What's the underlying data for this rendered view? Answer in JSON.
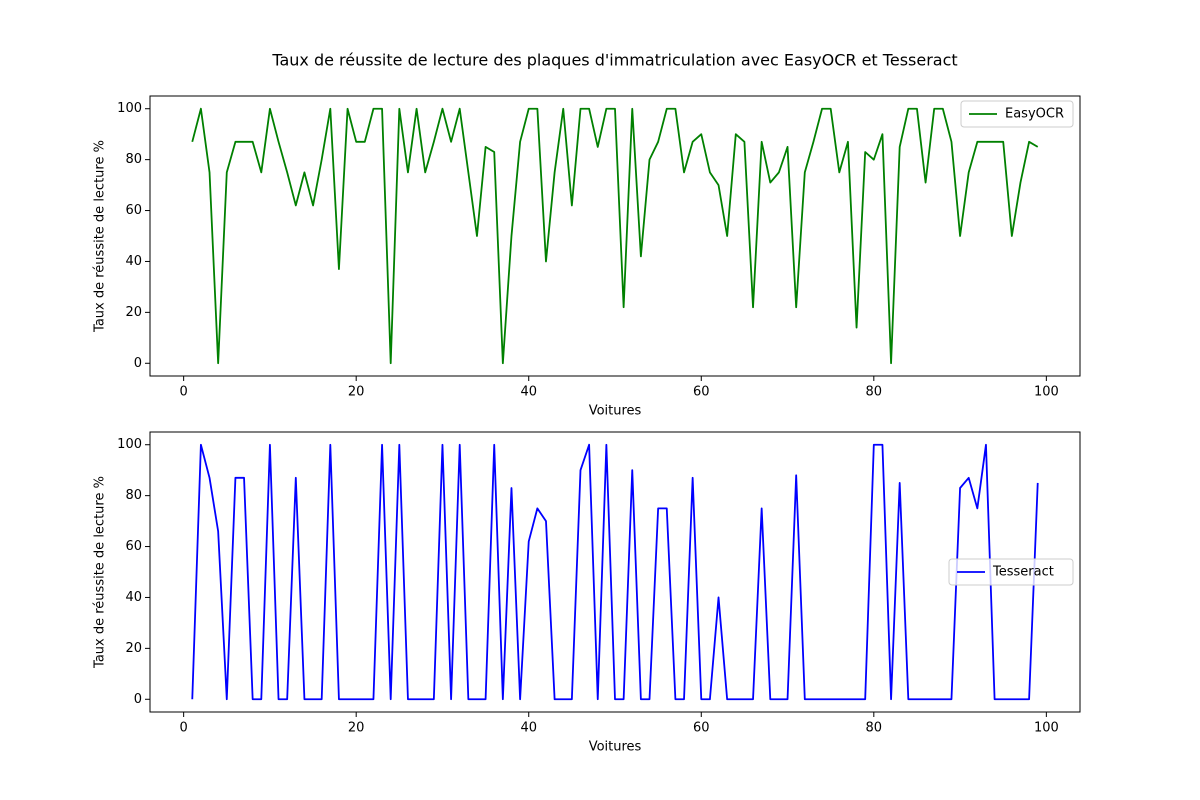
{
  "title": "Taux de réussite de lecture des plaques d'immatriculation avec EasyOCR et Tesseract",
  "chart_data": [
    {
      "type": "line",
      "xlabel": "Voitures",
      "ylabel": "Taux de réussite de lecture %",
      "x": [
        1,
        2,
        3,
        4,
        5,
        6,
        7,
        8,
        9,
        10,
        11,
        12,
        13,
        14,
        15,
        16,
        17,
        18,
        19,
        20,
        21,
        22,
        23,
        24,
        25,
        26,
        27,
        28,
        29,
        30,
        31,
        32,
        33,
        34,
        35,
        36,
        37,
        38,
        39,
        40,
        41,
        42,
        43,
        44,
        45,
        46,
        47,
        48,
        49,
        50,
        51,
        52,
        53,
        54,
        55,
        56,
        57,
        58,
        59,
        60,
        61,
        62,
        63,
        64,
        65,
        66,
        67,
        68,
        69,
        70,
        71,
        72,
        73,
        74,
        75,
        76,
        77,
        78,
        79,
        80,
        81,
        82,
        83,
        84,
        85,
        86,
        87,
        88,
        89,
        90,
        91,
        92,
        93,
        94,
        95,
        96,
        97,
        98,
        99
      ],
      "series": [
        {
          "name": "EasyOCR",
          "color": "green",
          "values": [
            87,
            100,
            75,
            0,
            75,
            87,
            87,
            87,
            75,
            100,
            87,
            75,
            62,
            75,
            62,
            80,
            100,
            37,
            100,
            87,
            87,
            100,
            100,
            0,
            100,
            75,
            100,
            75,
            87,
            100,
            87,
            100,
            75,
            50,
            85,
            83,
            0,
            50,
            87,
            100,
            100,
            40,
            75,
            100,
            62,
            100,
            100,
            85,
            100,
            100,
            22,
            100,
            42,
            80,
            87,
            100,
            100,
            75,
            87,
            90,
            75,
            70,
            50,
            90,
            87,
            22,
            87,
            71,
            75,
            85,
            22,
            75,
            87,
            100,
            100,
            75,
            87,
            14,
            83,
            80,
            90,
            0,
            85,
            100,
            100,
            71,
            100,
            100,
            87,
            50,
            75,
            87,
            87,
            87,
            87,
            50,
            71,
            87,
            85
          ]
        }
      ],
      "xlim": [
        -3.9,
        103.9
      ],
      "ylim": [
        -5,
        105
      ],
      "xticks": [
        0,
        20,
        40,
        60,
        80,
        100
      ],
      "yticks": [
        0,
        20,
        40,
        60,
        80,
        100
      ],
      "legend": "upper right"
    },
    {
      "type": "line",
      "xlabel": "Voitures",
      "ylabel": "Taux de réussite de lecture %",
      "x": [
        1,
        2,
        3,
        4,
        5,
        6,
        7,
        8,
        9,
        10,
        11,
        12,
        13,
        14,
        15,
        16,
        17,
        18,
        19,
        20,
        21,
        22,
        23,
        24,
        25,
        26,
        27,
        28,
        29,
        30,
        31,
        32,
        33,
        34,
        35,
        36,
        37,
        38,
        39,
        40,
        41,
        42,
        43,
        44,
        45,
        46,
        47,
        48,
        49,
        50,
        51,
        52,
        53,
        54,
        55,
        56,
        57,
        58,
        59,
        60,
        61,
        62,
        63,
        64,
        65,
        66,
        67,
        68,
        69,
        70,
        71,
        72,
        73,
        74,
        75,
        76,
        77,
        78,
        79,
        80,
        81,
        82,
        83,
        84,
        85,
        86,
        87,
        88,
        89,
        90,
        91,
        92,
        93,
        94,
        95,
        96,
        97,
        98,
        99
      ],
      "series": [
        {
          "name": "Tesseract",
          "color": "blue",
          "values": [
            0,
            100,
            87,
            66,
            0,
            87,
            87,
            0,
            0,
            100,
            0,
            0,
            87,
            0,
            0,
            0,
            100,
            0,
            0,
            0,
            0,
            0,
            100,
            0,
            100,
            0,
            0,
            0,
            0,
            100,
            0,
            100,
            0,
            0,
            0,
            100,
            0,
            83,
            0,
            62,
            75,
            70,
            0,
            0,
            0,
            90,
            100,
            0,
            100,
            0,
            0,
            90,
            0,
            0,
            75,
            75,
            0,
            0,
            87,
            0,
            0,
            40,
            0,
            0,
            0,
            0,
            75,
            0,
            0,
            0,
            88,
            0,
            0,
            0,
            0,
            0,
            0,
            0,
            0,
            100,
            100,
            0,
            85,
            0,
            0,
            0,
            0,
            0,
            0,
            83,
            87,
            75,
            100,
            0,
            0,
            0,
            0,
            0,
            85
          ]
        }
      ],
      "xlim": [
        -3.9,
        103.9
      ],
      "ylim": [
        -5,
        105
      ],
      "xticks": [
        0,
        20,
        40,
        60,
        80,
        100
      ],
      "yticks": [
        0,
        20,
        40,
        60,
        80,
        100
      ],
      "legend": "center right"
    }
  ]
}
